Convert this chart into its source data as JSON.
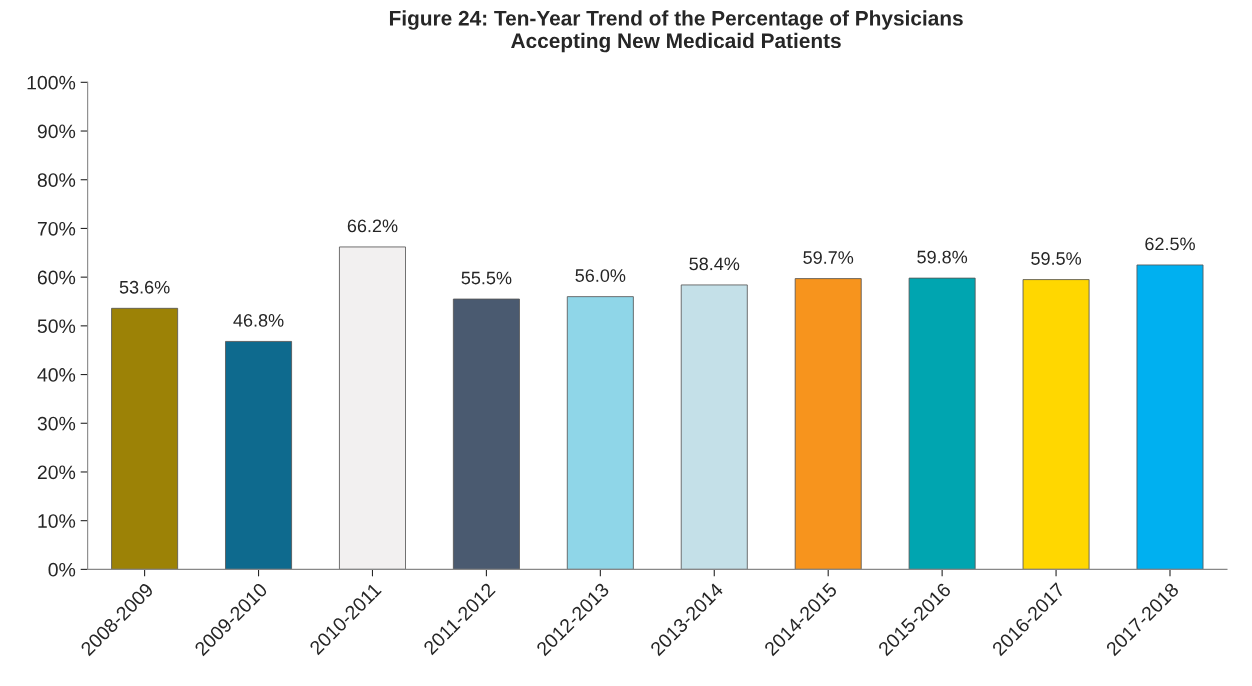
{
  "chart_data": {
    "type": "bar",
    "title": "Figure 24: Ten-Year Trend of the Percentage of Physicians\nAccepting New Medicaid Patients",
    "categories": [
      "2008-2009",
      "2009-2010",
      "2010-2011",
      "2011-2012",
      "2012-2013",
      "2013-2014",
      "2014-2015",
      "2015-2016",
      "2016-2017",
      "2017-2018"
    ],
    "values": [
      53.6,
      46.8,
      66.2,
      55.5,
      56.0,
      58.4,
      59.7,
      59.8,
      59.5,
      62.5
    ],
    "value_labels": [
      "53.6%",
      "46.8%",
      "66.2%",
      "55.5%",
      "56.0%",
      "58.4%",
      "59.7%",
      "59.8%",
      "59.5%",
      "62.5%"
    ],
    "colors": [
      "#9c8206",
      "#0e6a8e",
      "#f2f0f0",
      "#4a5a70",
      "#8fd6e8",
      "#c4e0e8",
      "#f7941d",
      "#00a5b0",
      "#ffd700",
      "#00b0f0"
    ],
    "ylim": [
      0,
      100
    ],
    "yticks": [
      {
        "value": 0,
        "label": "0%"
      },
      {
        "value": 10,
        "label": "10%"
      },
      {
        "value": 20,
        "label": "20%"
      },
      {
        "value": 30,
        "label": "30%"
      },
      {
        "value": 40,
        "label": "40%"
      },
      {
        "value": 50,
        "label": "50%"
      },
      {
        "value": 60,
        "label": "60%"
      },
      {
        "value": 70,
        "label": "70%"
      },
      {
        "value": 80,
        "label": "80%"
      },
      {
        "value": 90,
        "label": "90%"
      },
      {
        "value": 100,
        "label": "100%"
      }
    ],
    "grid": false,
    "legend": false
  }
}
